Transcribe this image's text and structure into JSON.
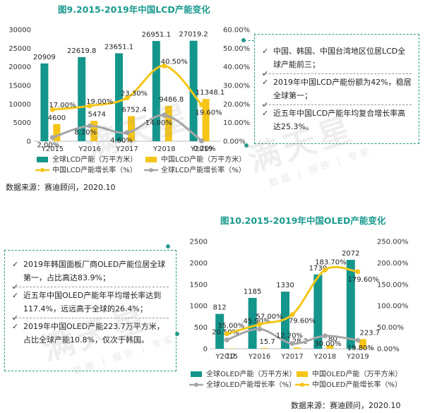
{
  "chart_data": [
    {
      "type": "bar",
      "title": "图9.2015-2019年中国LCD产能变化",
      "categories": [
        "Y2015",
        "Y2016",
        "Y2017",
        "Y2018",
        "Y2019"
      ],
      "series": [
        {
          "name": "全球LCD产能（万平方米）",
          "kind": "bar",
          "axis": "left",
          "color": "#14968c",
          "values": [
            20909,
            22619.8,
            23651.1,
            26951.1,
            27019.2
          ],
          "labels": [
            "20909",
            "22619.8",
            "23651.1",
            "26951.1",
            "27019.2"
          ]
        },
        {
          "name": "中国LCD产能（万平方米）",
          "kind": "bar",
          "axis": "left",
          "color": "#f5c518",
          "values": [
            4600,
            5474,
            6752.4,
            9486.8,
            11348.1
          ],
          "labels": [
            "4600",
            "5474",
            "6752.4",
            "9486.8",
            "11348.1"
          ]
        },
        {
          "name": "中国LCD产能增长率（%）",
          "kind": "line",
          "axis": "right",
          "color": "#f5c518",
          "values": [
            0.17,
            0.19,
            0.233,
            0.405,
            0.196
          ],
          "labels": [
            "17.00%",
            "19.00%",
            "23.30%",
            "40.50%",
            "19.60%"
          ]
        },
        {
          "name": "全球LCD产能增长率（%）",
          "kind": "line",
          "axis": "right",
          "color": "#a6a6a6",
          "values": [
            0.02,
            0.082,
            0.046,
            0.14,
            0.002
          ],
          "labels": [
            "2.00%",
            "8.20%",
            "4.60%",
            "14.00%",
            "0.20%"
          ]
        }
      ],
      "ylim_left": [
        0,
        30000
      ],
      "yticks_left": [
        "0",
        "5000",
        "10000",
        "15000",
        "20000",
        "25000",
        "30000"
      ],
      "ylim_right": [
        0,
        0.6
      ],
      "yticks_right": [
        "0.00%",
        "10.00%",
        "20.00%",
        "30.00%",
        "40.00%",
        "50.00%",
        "60.00%"
      ],
      "legend": [
        "全球LCD产能（万平方米）",
        "中国LCD产能（万平方米）",
        "中国LCD产能增长率（%）",
        "全球LCD产能增长率（%）"
      ],
      "legend_position": "bottom",
      "source": "数据来源：赛迪顾问，2020.10"
    },
    {
      "type": "bar",
      "title": "图10.2015-2019年中国OLED产能变化",
      "categories": [
        "Y2015",
        "Y2016",
        "Y2017",
        "Y2018",
        "Y2019"
      ],
      "series": [
        {
          "name": "全球OLED产能（万平方米）",
          "kind": "bar",
          "axis": "left",
          "color": "#14968c",
          "values": [
            812,
            1185,
            1330,
            1730,
            2072
          ],
          "labels": [
            "812",
            "1185",
            "1330",
            "1730",
            "2072"
          ]
        },
        {
          "name": "中国OLED产能（万平方米）",
          "kind": "bar",
          "axis": "left",
          "color": "#f5c518",
          "values": [
            10,
            15.7,
            28.2,
            80,
            223.7
          ],
          "labels": [
            "10",
            "15.7",
            "28.2",
            "80",
            "223.7"
          ]
        },
        {
          "name": "全球OLED产能增长率（%）",
          "kind": "line",
          "axis": "right",
          "color": "#a6a6a6",
          "values": [
            0.205,
            0.459,
            0.122,
            0.3,
            0.198
          ],
          "labels": [
            "20.50%",
            "45.90%",
            "12.20%",
            "30.00%",
            "19.80%"
          ]
        },
        {
          "name": "中国OLED产能增长率（%）",
          "kind": "line",
          "axis": "right",
          "color": "#f5c518",
          "values": [
            0.35,
            0.57,
            0.796,
            1.837,
            1.796
          ],
          "labels": [
            "35.00%",
            "57.00%",
            "79.60%",
            "183.70%",
            "179.60%"
          ]
        }
      ],
      "ylim_left": [
        0,
        2500
      ],
      "yticks_left": [
        "0",
        "500",
        "1000",
        "1500",
        "2000",
        "2500"
      ],
      "ylim_right": [
        0,
        2.5
      ],
      "yticks_right": [
        "0.00%",
        "50.00%",
        "100.00%",
        "150.00%",
        "200.00%",
        "250.00%"
      ],
      "legend": [
        "全球OLED产能（万平方米）",
        "中国OLED产能（万平方米）",
        "全球OLED产能增长率（%）",
        "中国OLED产能增长率（%）"
      ],
      "legend_position": "bottom",
      "source": "数据来源：赛迪顾问，2020.10"
    }
  ],
  "notes": [
    {
      "items": [
        "中国、韩国、中国台湾地区位居LCD全球产能前三；",
        "2019年中国LCD产能份额为42%，稳居全球第一；",
        "近五年中国LCD产能年均复合增长率高达25.3%。"
      ]
    },
    {
      "items": [
        "2019年韩国面板厂商OLED产能位居全球第一，占比高达83.9%；",
        "近五年中国OLED产能年平均增长率达到117.4%，远远高于全球的26.4%；",
        "2019年中国OLED产能223.7万平方米，占比全球产能10.8%，仅次于韩国。"
      ]
    }
  ],
  "watermark": {
    "text": "满天星",
    "sub": "数据 | 报告 | 专家"
  }
}
